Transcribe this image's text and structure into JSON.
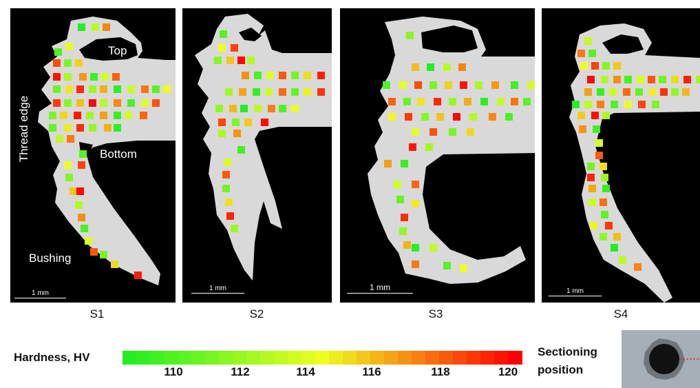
{
  "panels": [
    {
      "id": "S1",
      "label": "S1",
      "scale": "1 mm",
      "annotations": [
        "Top",
        "Bottom",
        "Bushing",
        "Thread edge"
      ]
    },
    {
      "id": "S2",
      "label": "S2",
      "scale": "1 mm"
    },
    {
      "id": "S3",
      "label": "S3",
      "scale": "1 mm"
    },
    {
      "id": "S4",
      "label": "S4",
      "scale": "1 mm"
    }
  ],
  "legend": {
    "title": "Hardness, HV",
    "min": 108,
    "max": 120,
    "ticks": [
      "110",
      "112",
      "114",
      "116",
      "118",
      "120"
    ],
    "colors": {
      "low": "#22ee22",
      "mid": "#eeff22",
      "high": "#ff0000"
    }
  },
  "sectioning": {
    "line1": "Sectioning",
    "line2": "position"
  }
}
